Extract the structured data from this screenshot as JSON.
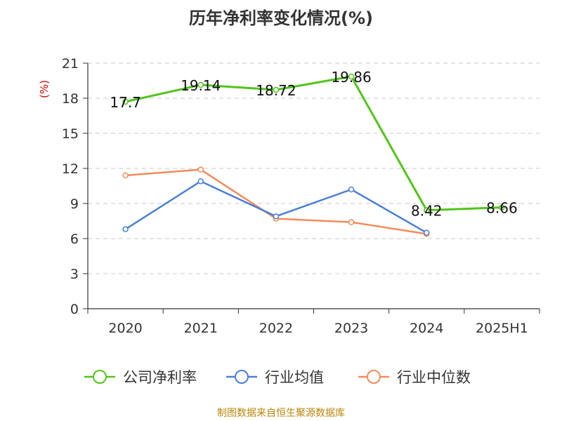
{
  "chart_data": {
    "type": "line",
    "title": "历年净利率变化情况(%)",
    "ylabel": "(%)",
    "xlabel": "",
    "categories": [
      "2020",
      "2021",
      "2022",
      "2023",
      "2024",
      "2025H1"
    ],
    "ylim": [
      0,
      21
    ],
    "yticks": [
      0,
      3,
      6,
      9,
      12,
      15,
      18,
      21
    ],
    "grid": true,
    "legend_position": "bottom",
    "series": [
      {
        "name": "公司净利率",
        "color": "#52c41a",
        "values": [
          17.7,
          19.14,
          18.72,
          19.86,
          8.42,
          8.66
        ],
        "labels": [
          "17.7",
          "19.14",
          "18.72",
          "19.86",
          "8.42",
          "8.66"
        ]
      },
      {
        "name": "行业均值",
        "color": "#4a7fd6",
        "values": [
          6.8,
          10.9,
          7.9,
          10.2,
          6.5,
          null
        ]
      },
      {
        "name": "行业中位数",
        "color": "#f28c5a",
        "values": [
          11.4,
          11.9,
          7.7,
          7.4,
          6.4,
          null
        ]
      }
    ]
  },
  "source_text": "制图数据来自恒生聚源数据库"
}
